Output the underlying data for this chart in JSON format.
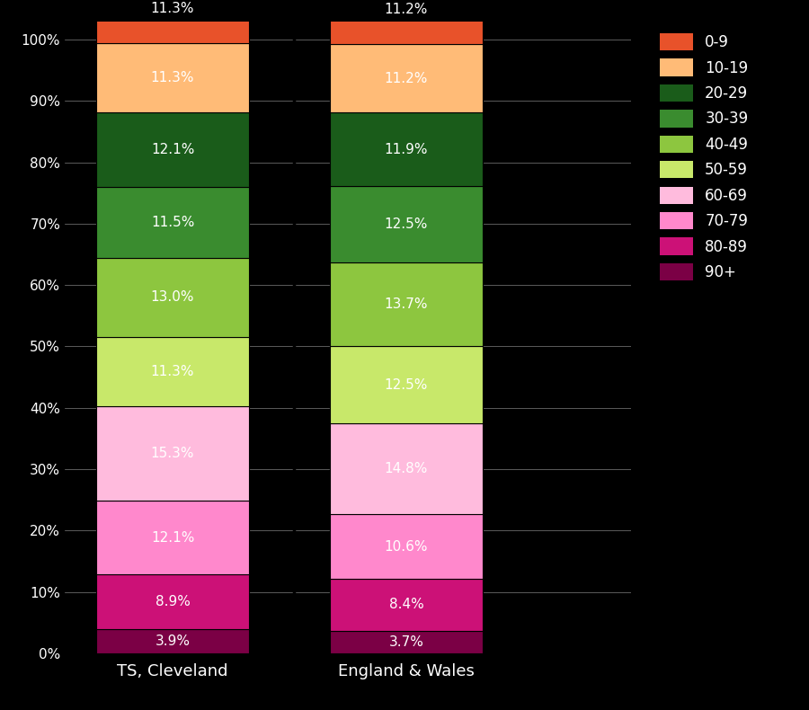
{
  "age_groups_bottom_to_top": [
    "90+",
    "80-89",
    "70-79",
    "60-69",
    "50-59",
    "40-49",
    "30-39",
    "20-29",
    "10-19",
    "0-9"
  ],
  "colors_bottom_to_top": [
    "#7b0045",
    "#cc1177",
    "#ff88cc",
    "#ffbbdd",
    "#c8e86a",
    "#8dc63f",
    "#3a8c2f",
    "#1a5c1a",
    "#ffbb77",
    "#e8522a"
  ],
  "cleveland": [
    3.9,
    8.9,
    12.1,
    15.3,
    11.3,
    13.0,
    11.5,
    12.1,
    11.3,
    11.3
  ],
  "england_wales": [
    3.7,
    8.4,
    10.6,
    14.8,
    12.5,
    13.7,
    12.5,
    11.9,
    11.2,
    11.2
  ],
  "cleveland_labels": [
    "3.9%",
    "8.9%",
    "12.1%",
    "15.3%",
    "11.3%",
    "13.0%",
    "11.5%",
    "12.1%",
    "11.3%",
    "11.3%"
  ],
  "england_wales_labels": [
    "3.7%",
    "8.4%",
    "10.6%",
    "14.8%",
    "12.5%",
    "13.7%",
    "12.5%",
    "11.9%",
    "11.2%",
    "11.2%"
  ],
  "legend_labels": [
    "0-9",
    "10-19",
    "20-29",
    "30-39",
    "40-49",
    "50-59",
    "60-69",
    "70-79",
    "80-89",
    "90+"
  ],
  "legend_colors": [
    "#e8522a",
    "#ffbb77",
    "#1a5c1a",
    "#3a8c2f",
    "#8dc63f",
    "#c8e86a",
    "#ffbbdd",
    "#ff88cc",
    "#cc1177",
    "#7b0045"
  ],
  "x_labels": [
    "TS, Cleveland",
    "England & Wales"
  ],
  "background_color": "#000000",
  "figsize": [
    9.0,
    7.9
  ],
  "dpi": 100
}
